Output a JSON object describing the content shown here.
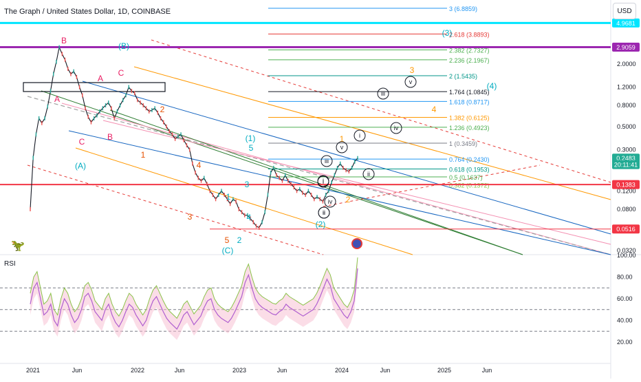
{
  "header": {
    "title": "The Graph / United States Dollar, 1D, COINBASE"
  },
  "currency_button": "USD",
  "rsi_label": "RSI",
  "colors": {
    "price": "#ffffff",
    "cyan_level": "#00e5ff",
    "purple_level": "#9c27b0",
    "red_level": "#f23645",
    "green_tag": "#22ab94",
    "rsi_line": "#b05fd0",
    "rsi_band": "#8bc34a"
  },
  "chart_data": {
    "type": "line",
    "title": "The Graph / United States Dollar, 1D, COINBASE",
    "yscale": "log",
    "price_axis_labels": [
      "2.0000",
      "1.2000",
      "0.8000",
      "0.5000",
      "0.3000",
      "0.1200",
      "0.0800",
      "0.0320"
    ],
    "price_axis_values": [
      2.0,
      1.2,
      0.8,
      0.5,
      0.3,
      0.12,
      0.08,
      0.032
    ],
    "x_tick_labels": [
      "2021",
      "Jun",
      "2022",
      "Jun",
      "2023",
      "Jun",
      "2024",
      "Jun",
      "2025",
      "Jun"
    ],
    "price_tags": [
      {
        "label": "4.9681",
        "value": 4.9681,
        "color": "#00e5ff"
      },
      {
        "label": "2.9059",
        "value": 2.9059,
        "color": "#9c27b0"
      },
      {
        "label": "0.2483",
        "value": 0.2483,
        "color": "#22ab94"
      },
      {
        "label": "20:11:41",
        "value": 0.215,
        "color": "#22ab94"
      },
      {
        "label": "0.1383",
        "value": 0.1383,
        "color": "#f23645"
      },
      {
        "label": "0.0516",
        "value": 0.0516,
        "color": "#f23645"
      }
    ],
    "fib_levels": [
      {
        "label": "3 (6.8859)",
        "value": 6.8859,
        "color": "#2196f3"
      },
      {
        "label": "2.618 (3.8893)",
        "value": 3.8893,
        "color": "#e53935"
      },
      {
        "label": "2.382 (2.7327)",
        "value": 2.7327,
        "color": "#4caf50"
      },
      {
        "label": "2.236 (2.1967)",
        "value": 2.1967,
        "color": "#4caf50"
      },
      {
        "label": "2 (1.5435)",
        "value": 1.5435,
        "color": "#009688"
      },
      {
        "label": "1.764 (1.0845)",
        "value": 1.0845,
        "color": "#131722"
      },
      {
        "label": "1.618 (0.8717)",
        "value": 0.8717,
        "color": "#2196f3"
      },
      {
        "label": "1.382 (0.6125)",
        "value": 0.6125,
        "color": "#ff9800"
      },
      {
        "label": "1.236 (0.4923)",
        "value": 0.4923,
        "color": "#4caf50"
      },
      {
        "label": "1 (0.3459)",
        "value": 0.3459,
        "color": "#787b86"
      },
      {
        "label": "0.764 (0.2430)",
        "value": 0.243,
        "color": "#2196f3"
      },
      {
        "label": "0.618 (0.1953)",
        "value": 0.1953,
        "color": "#009688"
      },
      {
        "label": "0.5 (0.1637)",
        "value": 0.1637,
        "color": "#4caf50"
      },
      {
        "label": "0.382 (0.1372)",
        "value": 0.1372,
        "color": "#8bc34a"
      }
    ],
    "wave_labels": [
      {
        "text": "B",
        "color": "#e91e63"
      },
      {
        "text": "(B)",
        "color": "#00acc1"
      },
      {
        "text": "A",
        "color": "#e91e63"
      },
      {
        "text": "A",
        "color": "#e91e63"
      },
      {
        "text": "C",
        "color": "#e91e63"
      },
      {
        "text": "B",
        "color": "#e91e63"
      },
      {
        "text": "C",
        "color": "#e91e63"
      },
      {
        "text": "2",
        "color": "#e65100"
      },
      {
        "text": "1",
        "color": "#e65100"
      },
      {
        "text": "(A)",
        "color": "#00acc1"
      },
      {
        "text": "4",
        "color": "#e65100"
      },
      {
        "text": "3",
        "color": "#e65100"
      },
      {
        "text": "(1)",
        "color": "#00acc1"
      },
      {
        "text": "5",
        "color": "#00acc1"
      },
      {
        "text": "3",
        "color": "#00acc1"
      },
      {
        "text": "1",
        "color": "#00acc1"
      },
      {
        "text": "4",
        "color": "#00acc1"
      },
      {
        "text": "5",
        "color": "#e65100"
      },
      {
        "text": "2",
        "color": "#00acc1"
      },
      {
        "text": "(C)",
        "color": "#00acc1"
      },
      {
        "text": "(2)",
        "color": "#00acc1"
      },
      {
        "text": "(3)",
        "color": "#00acc1"
      },
      {
        "text": "(4)",
        "color": "#00acc1"
      },
      {
        "text": "3",
        "color": "#ff9800"
      },
      {
        "text": "4",
        "color": "#ff9800"
      },
      {
        "text": "1",
        "color": "#ff9800"
      },
      {
        "text": "2",
        "color": "#ff9800"
      }
    ],
    "roman_labels": [
      "iii",
      "iv",
      "v",
      "i",
      "ii",
      "iii",
      "v",
      "i",
      "ii",
      "iv",
      "i",
      "ii"
    ],
    "rsi": {
      "label": "RSI",
      "axis_labels": [
        "100.00",
        "80.00",
        "60.00",
        "40.00",
        "20.00"
      ],
      "axis_values": [
        100,
        80,
        60,
        40,
        20
      ],
      "levels": [
        70,
        50,
        30
      ]
    },
    "price_series_daily_close": [
      0.08,
      0.25,
      0.42,
      0.6,
      0.54,
      0.6,
      0.78,
      1.1,
      1.6,
      2.1,
      2.9,
      2.5,
      2.2,
      1.8,
      1.6,
      1.7,
      1.5,
      1.2,
      1.0,
      0.75,
      0.62,
      0.55,
      0.6,
      0.64,
      0.7,
      0.75,
      0.8,
      0.85,
      0.75,
      0.6,
      0.7,
      0.8,
      0.9,
      1.0,
      1.2,
      1.1,
      1.05,
      0.9,
      0.85,
      0.8,
      0.75,
      0.7,
      0.72,
      0.75,
      0.68,
      0.6,
      0.55,
      0.5,
      0.45,
      0.42,
      0.38,
      0.4,
      0.42,
      0.37,
      0.33,
      0.3,
      0.22,
      0.18,
      0.16,
      0.15,
      0.16,
      0.14,
      0.12,
      0.11,
      0.1,
      0.11,
      0.12,
      0.11,
      0.1,
      0.09,
      0.1,
      0.095,
      0.08,
      0.075,
      0.07,
      0.07,
      0.065,
      0.06,
      0.055,
      0.053,
      0.06,
      0.075,
      0.11,
      0.18,
      0.2,
      0.17,
      0.16,
      0.15,
      0.17,
      0.15,
      0.14,
      0.13,
      0.12,
      0.125,
      0.115,
      0.11,
      0.12,
      0.11,
      0.1,
      0.105,
      0.1,
      0.095,
      0.11,
      0.12,
      0.145,
      0.17,
      0.2,
      0.22,
      0.2,
      0.19,
      0.185,
      0.2,
      0.23,
      0.2483
    ],
    "rsi_series": [
      55,
      70,
      75,
      60,
      45,
      48,
      55,
      40,
      35,
      50,
      60,
      55,
      45,
      38,
      42,
      50,
      62,
      65,
      58,
      48,
      44,
      40,
      50,
      55,
      45,
      38,
      34,
      40,
      48,
      55,
      52,
      45,
      40,
      35,
      40,
      50,
      58,
      62,
      55,
      48,
      42,
      38,
      35,
      32,
      38,
      45,
      48,
      42,
      36,
      40,
      44,
      52,
      58,
      60,
      50,
      45,
      42,
      40,
      38,
      42,
      48,
      55,
      62,
      75,
      82,
      70,
      60,
      55,
      52,
      50,
      48,
      46,
      45,
      48,
      50,
      55,
      52,
      50,
      48,
      46,
      44,
      46,
      48,
      50,
      55,
      62,
      70,
      78,
      72,
      60,
      55,
      50,
      45,
      42,
      48,
      58,
      88
    ]
  }
}
